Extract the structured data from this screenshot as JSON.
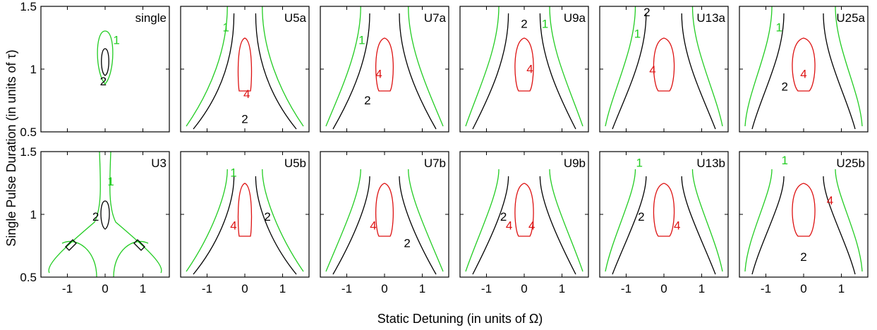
{
  "chart_data": {
    "type": "contour",
    "xlabel": "Static Detuning (in units of Ω)",
    "ylabel": "Single Pulse Duration (in units of τ)",
    "xlim": [
      -1.7,
      1.7
    ],
    "ylim": [
      0.5,
      1.5
    ],
    "xticks": [
      "-1",
      "0",
      "1"
    ],
    "yticks": [
      "0.5",
      "1",
      "1.5"
    ],
    "contour_levels": [
      {
        "level": "1",
        "color": "#22cc22"
      },
      {
        "level": "2",
        "color": "#000000"
      },
      {
        "level": "4",
        "color": "#dd1111"
      }
    ],
    "panels": [
      {
        "name": "single",
        "row": 0,
        "col": 0,
        "labels": [
          {
            "text": "1",
            "x": 0.3,
            "y": 1.2
          },
          {
            "text": "2",
            "x": -0.05,
            "y": 0.87
          }
        ]
      },
      {
        "name": "U5a",
        "row": 0,
        "col": 1,
        "labels": [
          {
            "text": "1",
            "x": -0.5,
            "y": 1.3
          },
          {
            "text": "4",
            "x": 0.05,
            "y": 0.77
          },
          {
            "text": "2",
            "x": 0.0,
            "y": 0.57
          }
        ]
      },
      {
        "name": "U7a",
        "row": 0,
        "col": 2,
        "labels": [
          {
            "text": "1",
            "x": -0.6,
            "y": 1.2
          },
          {
            "text": "4",
            "x": -0.15,
            "y": 0.93
          },
          {
            "text": "2",
            "x": -0.45,
            "y": 0.72
          }
        ]
      },
      {
        "name": "U9a",
        "row": 0,
        "col": 3,
        "labels": [
          {
            "text": "1",
            "x": 0.55,
            "y": 1.33
          },
          {
            "text": "2",
            "x": 0.0,
            "y": 1.33
          },
          {
            "text": "4",
            "x": 0.15,
            "y": 0.97
          }
        ]
      },
      {
        "name": "U13a",
        "row": 0,
        "col": 4,
        "labels": [
          {
            "text": "2",
            "x": -0.45,
            "y": 1.42
          },
          {
            "text": "1",
            "x": -0.7,
            "y": 1.25
          },
          {
            "text": "4",
            "x": -0.3,
            "y": 0.96
          }
        ]
      },
      {
        "name": "U25a",
        "row": 0,
        "col": 5,
        "labels": [
          {
            "text": "1",
            "x": -0.65,
            "y": 1.3
          },
          {
            "text": "4",
            "x": 0.0,
            "y": 0.93
          },
          {
            "text": "2",
            "x": -0.5,
            "y": 0.83
          }
        ]
      },
      {
        "name": "U3",
        "row": 1,
        "col": 0,
        "labels": [
          {
            "text": "1",
            "x": 0.15,
            "y": 1.23
          },
          {
            "text": "2",
            "x": -0.25,
            "y": 0.95
          }
        ]
      },
      {
        "name": "U5b",
        "row": 1,
        "col": 1,
        "labels": [
          {
            "text": "1",
            "x": -0.3,
            "y": 1.3
          },
          {
            "text": "2",
            "x": 0.6,
            "y": 0.95
          },
          {
            "text": "4",
            "x": -0.3,
            "y": 0.88
          }
        ]
      },
      {
        "name": "U7b",
        "row": 1,
        "col": 2,
        "labels": [
          {
            "text": "4",
            "x": -0.3,
            "y": 0.88
          },
          {
            "text": "2",
            "x": 0.6,
            "y": 0.74
          }
        ]
      },
      {
        "name": "U9b",
        "row": 1,
        "col": 3,
        "labels": [
          {
            "text": "2",
            "x": -0.55,
            "y": 0.95
          },
          {
            "text": "4",
            "x": -0.4,
            "y": 0.88
          },
          {
            "text": "4",
            "x": 0.2,
            "y": 0.88
          }
        ]
      },
      {
        "name": "U13b",
        "row": 1,
        "col": 4,
        "labels": [
          {
            "text": "1",
            "x": -0.65,
            "y": 1.38
          },
          {
            "text": "2",
            "x": -0.6,
            "y": 0.95
          },
          {
            "text": "4",
            "x": 0.35,
            "y": 0.88
          }
        ]
      },
      {
        "name": "U25b",
        "row": 1,
        "col": 5,
        "labels": [
          {
            "text": "1",
            "x": -0.5,
            "y": 1.4
          },
          {
            "text": "4",
            "x": 0.7,
            "y": 1.08
          },
          {
            "text": "2",
            "x": 0.0,
            "y": 0.63
          }
        ]
      }
    ]
  }
}
